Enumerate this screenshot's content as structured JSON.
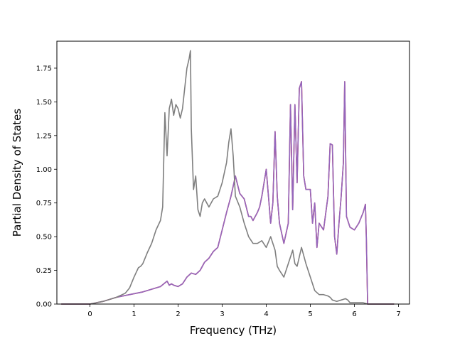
{
  "chart_data": {
    "type": "line",
    "title": "",
    "xlabel": "Frequency (THz)",
    "ylabel": "Partial Density of States",
    "xlim": [
      -0.75,
      7.25
    ],
    "ylim": [
      0.0,
      1.95
    ],
    "x_ticks": [
      0,
      1,
      2,
      3,
      4,
      5,
      6,
      7
    ],
    "x_tick_labels": [
      "0",
      "1",
      "2",
      "3",
      "4",
      "5",
      "6",
      "7"
    ],
    "y_ticks": [
      0.0,
      0.25,
      0.5,
      0.75,
      1.0,
      1.25,
      1.5,
      1.75
    ],
    "y_tick_labels": [
      "0.00",
      "0.25",
      "0.50",
      "0.75",
      "1.00",
      "1.25",
      "1.50",
      "1.75"
    ],
    "grid": false,
    "legend": "none",
    "series": [
      {
        "color": "#d62728",
        "x": [
          -0.65,
          0,
          0.3,
          0.6,
          0.9,
          1.2,
          1.5,
          1.6,
          1.75,
          1.8,
          1.85,
          1.9,
          2.0,
          2.1,
          2.2,
          2.3,
          2.4,
          2.5,
          2.6,
          2.7,
          2.8,
          2.9,
          3.0,
          3.1,
          3.2,
          3.3,
          3.4,
          3.5,
          3.6,
          3.65,
          3.7,
          3.8,
          3.85,
          3.9,
          4.0,
          4.1,
          4.15,
          4.2,
          4.25,
          4.3,
          4.4,
          4.5,
          4.55,
          4.6,
          4.65,
          4.7,
          4.75,
          4.8,
          4.85,
          4.9,
          5.0,
          5.05,
          5.1,
          5.15,
          5.2,
          5.3,
          5.4,
          5.45,
          5.5,
          5.55,
          5.6,
          5.65,
          5.7,
          5.75,
          5.78,
          5.82,
          5.9,
          6.0,
          6.1,
          6.2,
          6.25,
          6.27,
          6.3,
          6.9
        ],
        "y": [
          0,
          0,
          0.02,
          0.05,
          0.07,
          0.09,
          0.12,
          0.13,
          0.17,
          0.14,
          0.15,
          0.14,
          0.13,
          0.15,
          0.2,
          0.23,
          0.22,
          0.25,
          0.31,
          0.34,
          0.39,
          0.42,
          0.55,
          0.68,
          0.8,
          0.95,
          0.82,
          0.78,
          0.65,
          0.65,
          0.62,
          0.68,
          0.72,
          0.8,
          1.0,
          0.6,
          0.75,
          1.28,
          0.8,
          0.6,
          0.45,
          0.6,
          1.48,
          0.7,
          1.48,
          0.9,
          1.6,
          1.65,
          0.95,
          0.85,
          0.85,
          0.6,
          0.75,
          0.42,
          0.6,
          0.55,
          0.8,
          1.19,
          1.18,
          0.5,
          0.37,
          0.6,
          0.8,
          1.05,
          1.65,
          0.65,
          0.57,
          0.55,
          0.6,
          0.68,
          0.74,
          0.5,
          0,
          0
        ]
      },
      {
        "color": "#9467bd",
        "x": [
          -0.65,
          0,
          0.3,
          0.6,
          0.9,
          1.2,
          1.5,
          1.6,
          1.75,
          1.8,
          1.85,
          1.9,
          2.0,
          2.1,
          2.2,
          2.3,
          2.4,
          2.5,
          2.6,
          2.7,
          2.8,
          2.9,
          3.0,
          3.1,
          3.2,
          3.3,
          3.4,
          3.5,
          3.6,
          3.65,
          3.7,
          3.8,
          3.85,
          3.9,
          4.0,
          4.1,
          4.15,
          4.2,
          4.25,
          4.3,
          4.4,
          4.5,
          4.55,
          4.6,
          4.65,
          4.7,
          4.75,
          4.8,
          4.85,
          4.9,
          5.0,
          5.05,
          5.1,
          5.15,
          5.2,
          5.3,
          5.4,
          5.45,
          5.5,
          5.55,
          5.6,
          5.65,
          5.7,
          5.75,
          5.78,
          5.82,
          5.9,
          6.0,
          6.1,
          6.2,
          6.25,
          6.27,
          6.3,
          6.9
        ],
        "y": [
          0,
          0,
          0.02,
          0.05,
          0.07,
          0.09,
          0.12,
          0.13,
          0.17,
          0.14,
          0.15,
          0.14,
          0.13,
          0.15,
          0.2,
          0.23,
          0.22,
          0.25,
          0.31,
          0.34,
          0.39,
          0.42,
          0.55,
          0.68,
          0.8,
          0.95,
          0.82,
          0.78,
          0.65,
          0.65,
          0.62,
          0.68,
          0.72,
          0.8,
          1.0,
          0.6,
          0.75,
          1.28,
          0.8,
          0.6,
          0.45,
          0.6,
          1.48,
          0.7,
          1.48,
          0.9,
          1.6,
          1.65,
          0.95,
          0.85,
          0.85,
          0.6,
          0.75,
          0.42,
          0.6,
          0.55,
          0.8,
          1.19,
          1.18,
          0.5,
          0.37,
          0.6,
          0.8,
          1.05,
          1.65,
          0.65,
          0.57,
          0.55,
          0.6,
          0.68,
          0.74,
          0.5,
          0,
          0
        ]
      },
      {
        "color": "#7f7f7f",
        "x": [
          -0.65,
          0,
          0.3,
          0.6,
          0.8,
          0.9,
          1.0,
          1.1,
          1.15,
          1.2,
          1.3,
          1.4,
          1.5,
          1.6,
          1.65,
          1.7,
          1.75,
          1.8,
          1.85,
          1.9,
          1.95,
          2.0,
          2.05,
          2.1,
          2.15,
          2.2,
          2.25,
          2.28,
          2.3,
          2.35,
          2.4,
          2.45,
          2.5,
          2.55,
          2.6,
          2.65,
          2.7,
          2.8,
          2.9,
          3.0,
          3.1,
          3.15,
          3.2,
          3.25,
          3.3,
          3.4,
          3.5,
          3.6,
          3.7,
          3.8,
          3.9,
          4.0,
          4.1,
          4.2,
          4.25,
          4.3,
          4.4,
          4.5,
          4.6,
          4.65,
          4.7,
          4.8,
          4.9,
          5.0,
          5.1,
          5.2,
          5.3,
          5.4,
          5.45,
          5.5,
          5.6,
          5.7,
          5.8,
          5.85,
          5.9,
          6.0,
          6.1,
          6.2,
          6.3,
          6.9
        ],
        "y": [
          0,
          0,
          0.02,
          0.05,
          0.08,
          0.12,
          0.2,
          0.27,
          0.28,
          0.3,
          0.38,
          0.45,
          0.55,
          0.62,
          0.72,
          1.42,
          1.1,
          1.45,
          1.52,
          1.4,
          1.48,
          1.45,
          1.38,
          1.45,
          1.6,
          1.75,
          1.82,
          1.88,
          1.3,
          0.85,
          0.95,
          0.7,
          0.65,
          0.75,
          0.78,
          0.75,
          0.72,
          0.78,
          0.8,
          0.9,
          1.05,
          1.2,
          1.3,
          1.1,
          0.8,
          0.72,
          0.6,
          0.5,
          0.45,
          0.45,
          0.47,
          0.42,
          0.5,
          0.4,
          0.28,
          0.25,
          0.2,
          0.3,
          0.4,
          0.3,
          0.28,
          0.42,
          0.3,
          0.2,
          0.1,
          0.07,
          0.07,
          0.06,
          0.05,
          0.03,
          0.02,
          0.03,
          0.04,
          0.03,
          0.01,
          0.01,
          0.01,
          0.01,
          0,
          0
        ]
      }
    ]
  }
}
